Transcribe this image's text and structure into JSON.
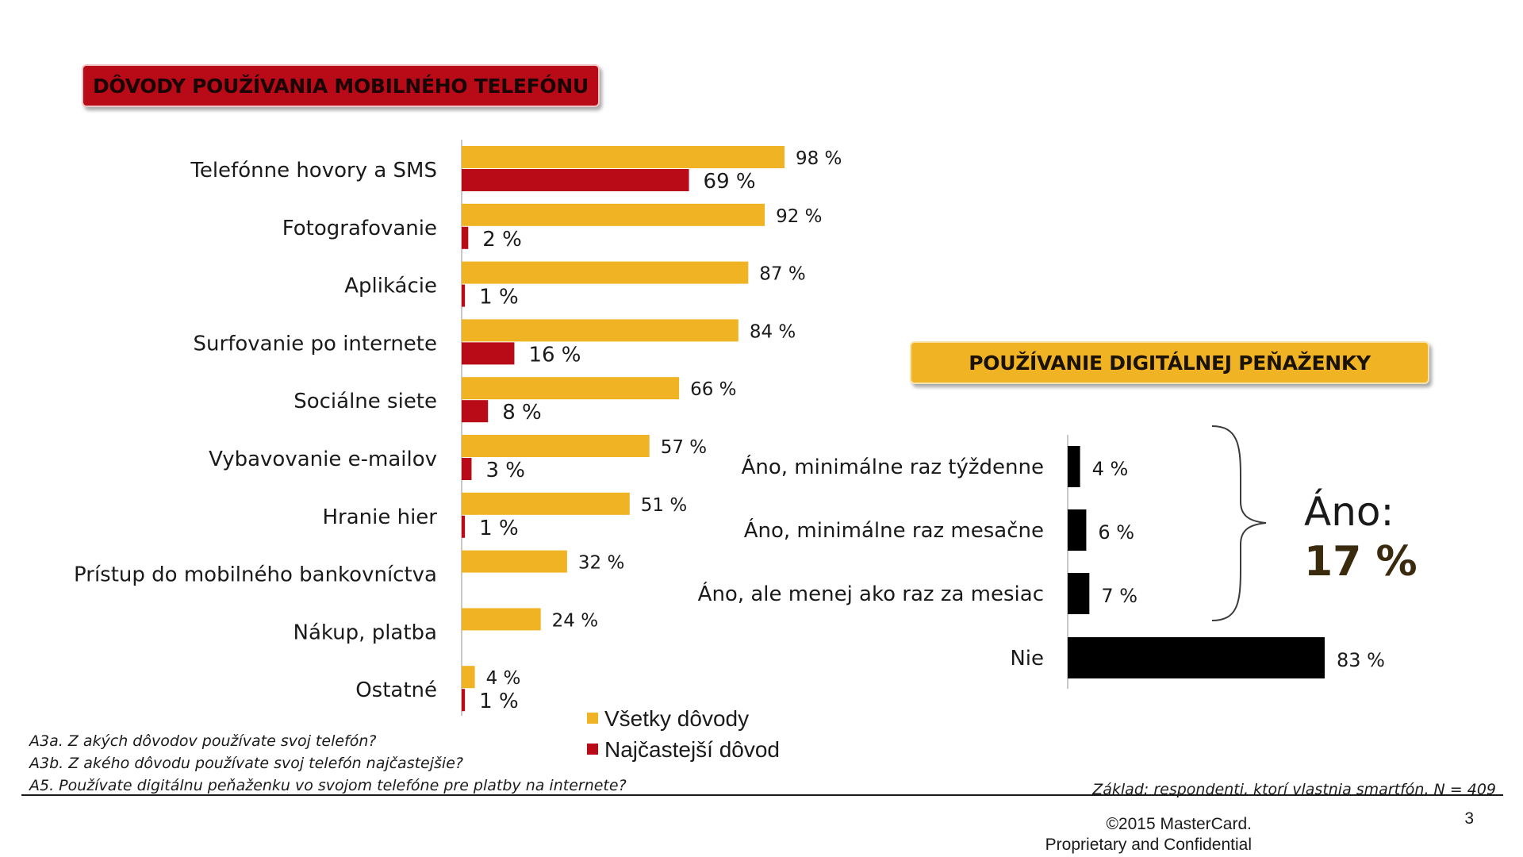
{
  "chart_data": [
    {
      "type": "bar",
      "orientation": "horizontal",
      "title": "DÔVODY POUŽÍVANIA MOBILNÉHO TELEFÓNU",
      "categories": [
        "Telefónne hovory a SMS",
        "Fotografovanie",
        "Aplikácie",
        "Surfovanie po internete",
        "Sociálne siete",
        "Vybavovanie e-mailov",
        "Hranie hier",
        "Prístup do mobilného bankovníctva",
        "Nákup, platba",
        "Ostatné"
      ],
      "series": [
        {
          "name": "Všetky dôvody",
          "color": "#f0b323",
          "values": [
            98,
            92,
            87,
            84,
            66,
            57,
            51,
            32,
            24,
            4
          ],
          "labels": [
            "98 %",
            "92 %",
            "87 %",
            "84 %",
            "66 %",
            "57 %",
            "51 %",
            "32 %",
            "24 %",
            "4 %"
          ]
        },
        {
          "name": "Najčastejší dôvod",
          "color": "#b80b17",
          "values": [
            69,
            2,
            1,
            16,
            8,
            3,
            1,
            null,
            null,
            1
          ],
          "labels": [
            "69 %",
            "2 %",
            "1 %",
            "16 %",
            "8 %",
            "3 %",
            "1 %",
            null,
            null,
            "1 %"
          ]
        }
      ],
      "unit": "%",
      "xlim": [
        0,
        100
      ]
    },
    {
      "type": "bar",
      "orientation": "horizontal",
      "title": "POUŽÍVANIE DIGITÁLNEJ PEŇAŽENKY",
      "categories": [
        "Áno, minimálne raz týždenne",
        "Áno, minimálne raz mesačne",
        "Áno, ale menej ako raz za mesiac",
        "Nie"
      ],
      "values": [
        4,
        6,
        7,
        83
      ],
      "labels": [
        "4 %",
        "6 %",
        "7 %",
        "83 %"
      ],
      "color": "#000000",
      "unit": "%",
      "xlim": [
        0,
        83
      ],
      "annotation": {
        "label": "Áno:",
        "value": "17 %"
      }
    }
  ],
  "banners": {
    "left": "DÔVODY POUŽÍVANIA MOBILNÉHO TELEFÓNU",
    "right": "POUŽÍVANIE DIGITÁLNEJ PEŇAŽENKY"
  },
  "legend": {
    "all": "Všetky dôvody",
    "most": "Najčastejší dôvod",
    "color_all": "#f0b323",
    "color_most": "#b80b17"
  },
  "notes": {
    "q1": "A3a. Z akých dôvodov používate svoj telefón?",
    "q2": "A3b. Z akého dôvodu používate svoj telefón najčastejšie?",
    "q3": "A5. Používate digitálnu peňaženku vo svojom telefóne pre platby na internete?",
    "base": "Základ: respondenti, ktorí vlastnia smartfón, N = 409"
  },
  "footer": {
    "copyright_line1": "©2015 MasterCard.",
    "copyright_line2": "Proprietary and Confidential",
    "page_number": "3"
  }
}
